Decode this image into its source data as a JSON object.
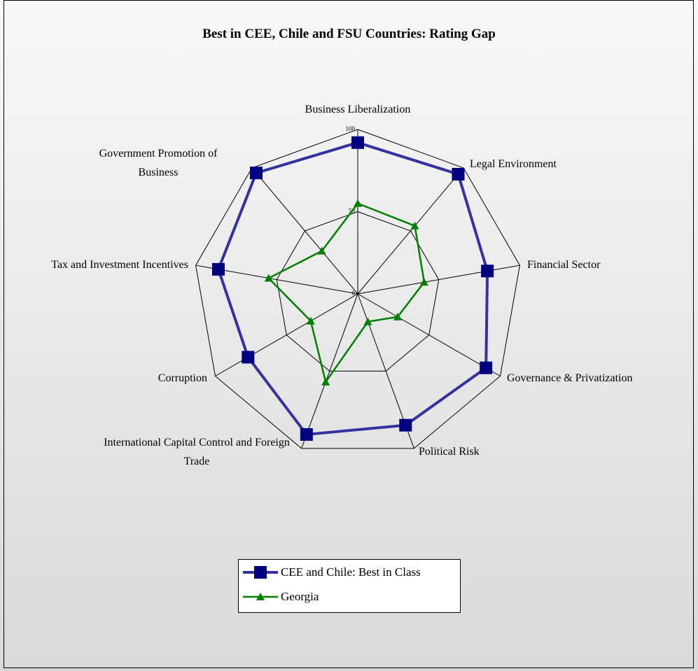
{
  "chart_data": {
    "type": "radar",
    "title": "Best in CEE, Chile and FSU Countries: Rating Gap",
    "categories": [
      "Business Liberalization",
      "Legal Environment",
      "Financial Sector",
      "Governance & Privatization",
      "Political Risk",
      "International Capital Control and Foreign Trade",
      "Corruption",
      "Tax and Investment Incentives",
      "Government Promotion of Business"
    ],
    "rlim": [
      0,
      100
    ],
    "rticks": [
      0,
      50,
      100
    ],
    "series": [
      {
        "name": "CEE and Chile: Best in Class",
        "color": "#000080",
        "line_color": "#3333a0",
        "marker": "square",
        "values": [
          92,
          95,
          80,
          90,
          85,
          91,
          77,
          86,
          96
        ]
      },
      {
        "name": "Georgia",
        "color": "#008000",
        "line_color": "#008000",
        "marker": "triangle",
        "values": [
          55,
          54,
          41,
          28,
          18,
          57,
          33,
          55,
          34
        ]
      }
    ]
  }
}
